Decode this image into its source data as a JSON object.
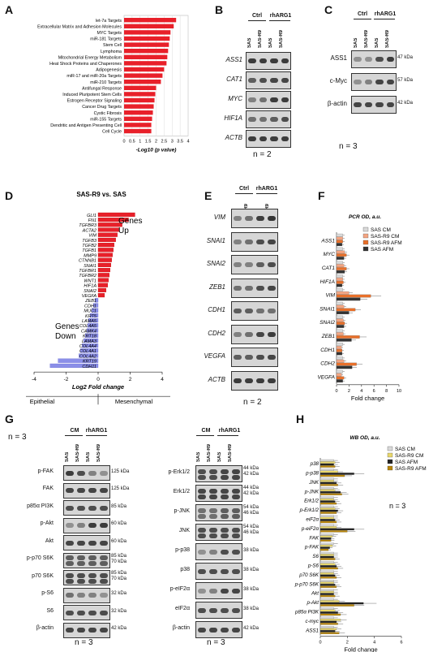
{
  "panels": {
    "A": {
      "letter": "A",
      "categories": [
        "let-7a Targets",
        "Extracellular Matrix and Adhesion Molecules",
        "MYC Targets",
        "miR-181 Targets",
        "Stem Cell",
        "Lymphoma",
        "Mitochondrial Energy Metabolism",
        "Heat Shock Proteins and Chaperones",
        "Adipogenesis",
        "miR-17 and miR-20a Targets",
        "miR-210 Targets",
        "Antifungal Response",
        "Induced Pluripotent Stem Cells",
        "Estrogen Receptor Signaling",
        "Cancer Drug Targets",
        "Cystic Fibrosis",
        "miR-155 Targets",
        "Dendritic and Antigen Presenting Cell",
        "Cell Cycle"
      ],
      "xlabel": "-Log10 (p value)",
      "ticks": [
        "0",
        "0.5",
        "1",
        "1.5",
        "2",
        "2.5",
        "3",
        "3.5",
        "4"
      ]
    },
    "B": {
      "letter": "B",
      "cols": [
        "SAS",
        "SAS-R9",
        "SAS",
        "SAS-R9"
      ],
      "groups": [
        "Ctrl",
        "rhARG1"
      ],
      "rows": [
        "ASS1",
        "CAT1",
        "MYC",
        "HIF1A",
        "ACTB"
      ],
      "n": "n = 2"
    },
    "C": {
      "letter": "C",
      "cols": [
        "SAS",
        "SAS-R9",
        "SAS",
        "SAS-R9"
      ],
      "groups": [
        "Ctrl",
        "rhARG1"
      ],
      "rows": [
        "ASS1",
        "c-Myc",
        "β-actin"
      ],
      "kda": [
        "47 kDa",
        "57 kDa",
        "42 kDa"
      ],
      "n": "n = 3"
    },
    "D": {
      "letter": "D",
      "title": "SAS-R9 vs. SAS",
      "genes": [
        "GLI1",
        "FN1",
        "TGFBR3",
        "ACTA2",
        "VIM",
        "TGFB3",
        "TGFB2",
        "TGFB1",
        "MMP9",
        "CTNNB1",
        "SNAI1",
        "TGFBR1",
        "TGFBR2",
        "WNT1",
        "HIF1A",
        "SNAI2",
        "VEGFA",
        "ZEB1",
        "CDH1",
        "MUC1",
        "KRT5",
        "LAMA5",
        "COL4A5",
        "CAMK4",
        "KRT18",
        "LAMA3",
        "COL4A4",
        "COL4A1",
        "COL4A2",
        "KRT19",
        "CDH11"
      ],
      "up_label": "Genes Up",
      "down_label": "Genes Down",
      "xlabel": "Log2 Fold change",
      "ticks": [
        "-4",
        "-2",
        "0",
        "2",
        "4"
      ],
      "left_label": "Epithelial",
      "right_label": "Mesenchymal",
      "n": "n = 3"
    },
    "E": {
      "letter": "E",
      "cols": [
        "SAS",
        "SAS-R9",
        "SAS",
        "SAS-R9"
      ],
      "groups": [
        "Ctrl",
        "rhARG1"
      ],
      "rows": [
        "VIM",
        "SNAI1",
        "SNAI2",
        "ZEB1",
        "CDH1",
        "CDH2",
        "VEGFA",
        "ACTB"
      ],
      "n": "n = 2"
    },
    "F": {
      "letter": "F",
      "title": "PCR OD, a.u.",
      "rows": [
        "ASS1",
        "MYC",
        "CAT1",
        "HIF1A",
        "VIM",
        "SNAI1",
        "SNAI2",
        "ZEB1",
        "CDH1",
        "CDH2",
        "VEGFA"
      ],
      "legend": [
        "SAS CM",
        "SAS-R9 CM",
        "SAS-R9 AFM",
        "SAS AFM"
      ],
      "xlabel": "Fold change",
      "ticks": [
        "0",
        "2",
        "4",
        "6",
        "8",
        "10"
      ]
    },
    "G": {
      "letter": "G",
      "cols": [
        "SAS",
        "SAS-R9",
        "SAS",
        "SAS-R9"
      ],
      "groups": [
        "CM",
        "rhARG1"
      ],
      "left_rows": [
        "p-FAK",
        "FAK",
        "p85α PI3K",
        "p-Akt",
        "Akt",
        "p-p70 S6K",
        "p70 S6K",
        "p-S6",
        "S6",
        "β-actin"
      ],
      "left_kda": [
        "125 kDa",
        "125 kDa",
        "85 kDa",
        "60 kDa",
        "60 kDa",
        "85 kDa\n70 kDa",
        "85 kDa\n70 kDa",
        "32 kDa",
        "32 kDa",
        "42 kDa"
      ],
      "right_rows": [
        "p-Erk1/2",
        "Erk1/2",
        "p-JNK",
        "JNK",
        "p-p38",
        "p38",
        "p-eIF2α",
        "eIF2α",
        "β-actin"
      ],
      "right_kda": [
        "44 kDa\n42 kDa",
        "44 kDa\n42 kDa",
        "54 kDa\n46 kDa",
        "54 kDa\n46 kDa",
        "38 kDa",
        "38 kDa",
        "38 kDa",
        "38 kDa",
        "42 kDa"
      ],
      "n_left": "n = 3",
      "n_right": "n = 3"
    },
    "H": {
      "letter": "H",
      "title": "WB OD, a.u.",
      "rows": [
        "p38",
        "p-p38",
        "JNK",
        "p-JNK",
        "Erk1/2",
        "p-Erk1/2",
        "eiF2α",
        "p-eiF2α",
        "FAK",
        "p-FAK",
        "S6",
        "p-S6",
        "p70 S6K",
        "p-p70 S6K",
        "Akt",
        "p-Akt",
        "p85α PI3K",
        "c-myc",
        "ASS1"
      ],
      "legend": [
        "SAS CM",
        "SAS-R9 CM",
        "SAS AFM",
        "SAS-R9 AFM"
      ],
      "xlabel": "Fold change",
      "ticks": [
        "0",
        "2",
        "4",
        "6"
      ],
      "n": "n = 3"
    }
  },
  "chart_data": [
    {
      "type": "bar",
      "title": "",
      "xlabel": "-Log10 (p value)",
      "ylabel": "",
      "categories": [
        "let-7a Targets",
        "Extracellular Matrix and Adhesion Molecules",
        "MYC Targets",
        "miR-181 Targets",
        "Stem Cell",
        "Lymphoma",
        "Mitochondrial Energy Metabolism",
        "Heat Shock Proteins and Chaperones",
        "Adipogenesis",
        "miR-17 and miR-20a Targets",
        "miR-210 Targets",
        "Antifungal Response",
        "Induced Pluripotent Stem Cells",
        "Estrogen Receptor Signaling",
        "Cancer Drug Targets",
        "Cystic Fibrosis",
        "miR-155 Targets",
        "Dendritic and Antigen Presenting Cell",
        "Cell Cycle"
      ],
      "values": [
        3.25,
        3.1,
        2.9,
        2.85,
        2.8,
        2.75,
        2.7,
        2.65,
        2.5,
        2.4,
        2.3,
        2.0,
        1.95,
        1.9,
        1.85,
        1.8,
        1.75,
        1.7,
        1.7
      ],
      "xlim": [
        0,
        4
      ],
      "orientation": "horizontal",
      "color": "#e8202a"
    },
    {
      "type": "bar",
      "title": "SAS-R9 vs. SAS",
      "xlabel": "Log2 Fold change",
      "categories": [
        "GLI1",
        "FN1",
        "TGFBR3",
        "ACTA2",
        "VIM",
        "TGFB3",
        "TGFB2",
        "TGFB1",
        "MMP9",
        "CTNNB1",
        "SNAI1",
        "TGFBR1",
        "TGFBR2",
        "WNT1",
        "HIF1A",
        "SNAI2",
        "VEGFA",
        "ZEB1",
        "CDH1",
        "MUC1",
        "KRT5",
        "LAMA5",
        "COL4A5",
        "CAMK4",
        "KRT18",
        "LAMA3",
        "COL4A4",
        "COL4A1",
        "COL4A2",
        "KRT19",
        "CDH11"
      ],
      "values": [
        2.3,
        1.9,
        1.5,
        1.3,
        1.2,
        1.1,
        1.0,
        0.95,
        0.9,
        0.85,
        0.8,
        0.75,
        0.7,
        0.65,
        0.6,
        0.5,
        0.4,
        -0.2,
        -0.3,
        -0.4,
        -0.5,
        -0.6,
        -0.65,
        -0.7,
        -0.8,
        -0.9,
        -1.0,
        -1.1,
        -1.2,
        -2.5,
        -3.0
      ],
      "xlim": [
        -4,
        4
      ],
      "orientation": "horizontal",
      "up_color": "#e8202a",
      "down_color": "#8b8fe8"
    },
    {
      "type": "bar",
      "title": "PCR OD, a.u.",
      "xlabel": "Fold change",
      "categories": [
        "ASS1",
        "MYC",
        "CAT1",
        "HIF1A",
        "VIM",
        "SNAI1",
        "SNAI2",
        "ZEB1",
        "CDH1",
        "CDH2",
        "VEGFA"
      ],
      "series": [
        {
          "name": "SAS CM",
          "color": "#d9d9d9",
          "values": [
            1,
            1,
            1,
            1,
            1,
            1,
            1,
            1,
            1,
            1,
            1
          ]
        },
        {
          "name": "SAS-R9 CM",
          "color": "#f4a582",
          "values": [
            1.0,
            1.3,
            1.2,
            1.0,
            2.0,
            1.2,
            1.1,
            1.1,
            0.8,
            1.2,
            0.8
          ]
        },
        {
          "name": "SAS-R9 AFM",
          "color": "#e8702a",
          "values": [
            1.0,
            1.6,
            1.6,
            1.1,
            5.5,
            3.0,
            1.3,
            3.7,
            0.9,
            3.2,
            1.2
          ]
        },
        {
          "name": "SAS AFM",
          "color": "#333333",
          "values": [
            0.9,
            1.2,
            1.3,
            0.9,
            3.8,
            2.0,
            1.2,
            2.4,
            0.9,
            2.5,
            1.0
          ]
        }
      ],
      "xlim": [
        0,
        10
      ],
      "orientation": "horizontal"
    },
    {
      "type": "bar",
      "title": "WB OD, a.u.",
      "xlabel": "Fold change",
      "categories": [
        "p38",
        "p-p38",
        "JNK",
        "p-JNK",
        "Erk1/2",
        "p-Erk1/2",
        "eiF2α",
        "p-eiF2α",
        "FAK",
        "p-FAK",
        "S6",
        "p-S6",
        "p70 S6K",
        "p-p70 S6K",
        "Akt",
        "p-Akt",
        "p85α PI3K",
        "c-myc",
        "ASS1"
      ],
      "series": [
        {
          "name": "SAS CM",
          "color": "#d9d9d9",
          "values": [
            1,
            1,
            1,
            1,
            1,
            1,
            1,
            1,
            1,
            1,
            1,
            1,
            1,
            1,
            1,
            1,
            1,
            1,
            1
          ]
        },
        {
          "name": "SAS-R9 CM",
          "color": "#e8d76b",
          "values": [
            1.1,
            1.3,
            1.0,
            1.1,
            1.0,
            1.1,
            1.0,
            1.2,
            0.9,
            0.9,
            1.0,
            1.1,
            1.0,
            1.0,
            1.0,
            1.4,
            1.1,
            1.5,
            1.2
          ]
        },
        {
          "name": "SAS AFM",
          "color": "#222222",
          "values": [
            1.0,
            2.5,
            1.2,
            1.5,
            1.1,
            1.3,
            1.1,
            2.5,
            0.8,
            0.7,
            1.0,
            1.2,
            1.1,
            1.1,
            1.0,
            3.2,
            1.3,
            1.2,
            1.1
          ]
        },
        {
          "name": "SAS-R9 AFM",
          "color": "#b8860b",
          "values": [
            1.1,
            1.8,
            1.3,
            1.6,
            1.2,
            1.2,
            1.2,
            2.0,
            0.8,
            0.6,
            1.1,
            1.3,
            1.2,
            1.2,
            1.1,
            2.5,
            1.5,
            1.3,
            1.4
          ]
        }
      ],
      "xlim": [
        0,
        6
      ],
      "orientation": "horizontal"
    }
  ]
}
